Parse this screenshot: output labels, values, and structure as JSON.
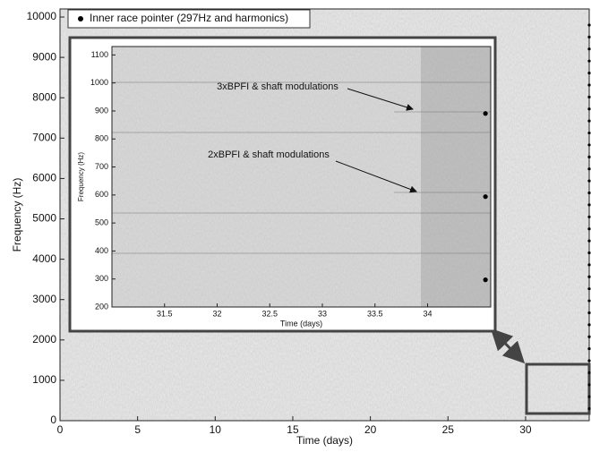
{
  "chart_data": [
    {
      "type": "scatter",
      "xlabel": "Time (days)",
      "ylabel": "Frequency (Hz)",
      "xlim": [
        0,
        34.1
      ],
      "ylim": [
        0,
        10200
      ],
      "xticks": [
        0,
        5,
        10,
        15,
        20,
        25,
        30
      ],
      "yticks": [
        0,
        1000,
        2000,
        3000,
        4000,
        5000,
        6000,
        7000,
        8000,
        9000,
        10000
      ],
      "legend": "upper left",
      "series": [
        {
          "name": "Inner race pointer (297Hz and harmonics)",
          "color": "#000000",
          "x": [
            34.1,
            34.1,
            34.1,
            34.1,
            34.1,
            34.1,
            34.1,
            34.1,
            34.1,
            34.1,
            34.1,
            34.1,
            34.1,
            34.1,
            34.1,
            34.1,
            34.1,
            34.1,
            34.1,
            34.1,
            34.1,
            34.1,
            34.1,
            34.1,
            34.1,
            34.1,
            34.1,
            34.1,
            34.1,
            34.1,
            34.1,
            34.1,
            34.1
          ],
          "values": [
            297,
            594,
            891,
            1188,
            1485,
            1782,
            2079,
            2376,
            2673,
            2970,
            3267,
            3564,
            3861,
            4158,
            4455,
            4752,
            5049,
            5346,
            5643,
            5940,
            6237,
            6534,
            6831,
            7128,
            7425,
            7722,
            8019,
            8316,
            8613,
            8910,
            9207,
            9504,
            9801
          ]
        }
      ]
    },
    {
      "type": "scatter",
      "xlabel": "Time (days)",
      "ylabel": "Frequency (Hz)",
      "xlim": [
        31,
        34.6
      ],
      "ylim": [
        200,
        1130
      ],
      "xticks": [
        31.5,
        32,
        32.5,
        33,
        33.5,
        34
      ],
      "yticks": [
        200,
        300,
        400,
        500,
        600,
        700,
        800,
        900,
        1000,
        1100
      ],
      "annotations": [
        "3xBPFI & shaft modulations",
        "2xBPFI & shaft modulations"
      ],
      "series": [
        {
          "color": "#000000",
          "x": [
            34.55,
            34.55,
            34.55
          ],
          "values": [
            297,
            594,
            891
          ]
        }
      ]
    }
  ]
}
